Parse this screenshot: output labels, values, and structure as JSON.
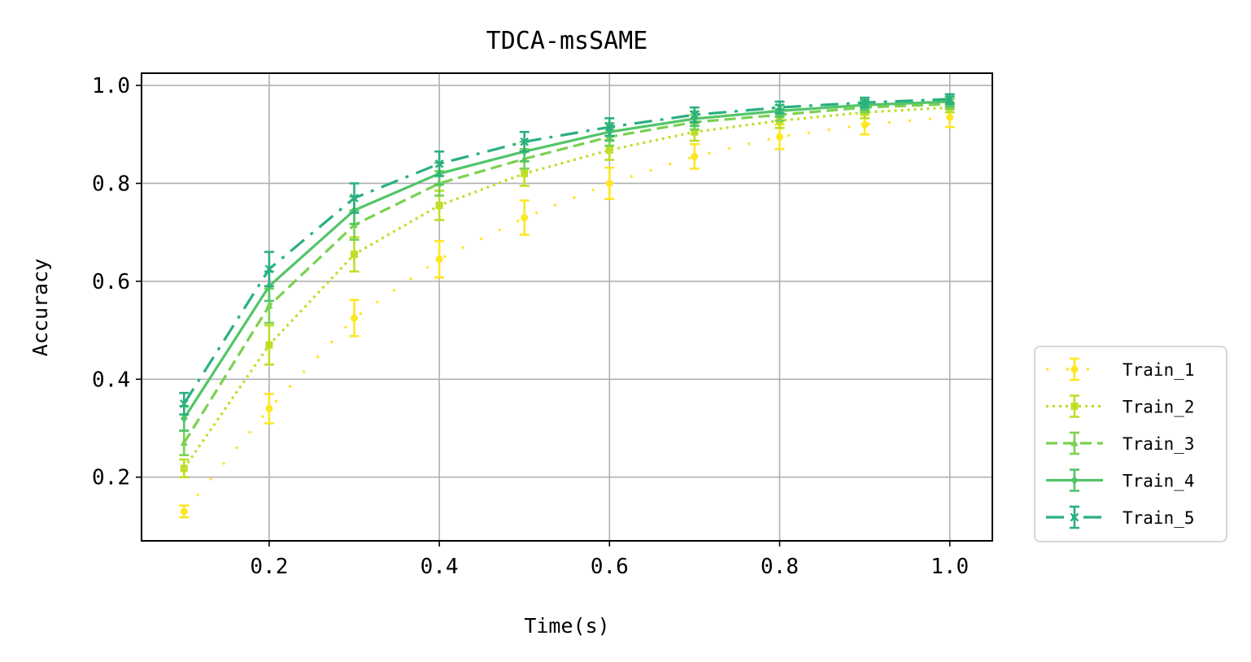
{
  "chart_data": {
    "type": "line",
    "title": "TDCA-msSAME",
    "xlabel": "Time(s)",
    "ylabel": "Accuracy",
    "xlim": [
      0.05,
      1.05
    ],
    "ylim": [
      0.07,
      1.025
    ],
    "xticks": [
      0.2,
      0.4,
      0.6,
      0.8,
      1.0
    ],
    "xtick_labels": [
      "0.2",
      "0.4",
      "0.6",
      "0.8",
      "1.0"
    ],
    "yticks": [
      0.2,
      0.4,
      0.6,
      0.8,
      1.0
    ],
    "ytick_labels": [
      "0.2",
      "0.4",
      "0.6",
      "0.8",
      "1.0"
    ],
    "grid": true,
    "legend_position": "outside-lower-right",
    "x": [
      0.1,
      0.2,
      0.3,
      0.4,
      0.5,
      0.6,
      0.7,
      0.8,
      0.9,
      1.0
    ],
    "series": [
      {
        "name": "Train_1",
        "color": "#fde725",
        "line_style": "loose-dotted",
        "marker": "circle",
        "values": [
          0.13,
          0.34,
          0.525,
          0.645,
          0.73,
          0.8,
          0.855,
          0.895,
          0.92,
          0.935
        ],
        "errors": [
          0.012,
          0.03,
          0.037,
          0.037,
          0.035,
          0.032,
          0.025,
          0.025,
          0.02,
          0.02
        ]
      },
      {
        "name": "Train_2",
        "color": "#bddf26",
        "line_style": "dotted",
        "marker": "square",
        "values": [
          0.218,
          0.47,
          0.655,
          0.755,
          0.82,
          0.868,
          0.905,
          0.928,
          0.945,
          0.955
        ],
        "errors": [
          0.018,
          0.04,
          0.035,
          0.03,
          0.025,
          0.02,
          0.018,
          0.015,
          0.012,
          0.01
        ]
      },
      {
        "name": "Train_3",
        "color": "#7ad151",
        "line_style": "dashed",
        "marker": "triangle",
        "values": [
          0.27,
          0.55,
          0.715,
          0.8,
          0.85,
          0.895,
          0.925,
          0.94,
          0.955,
          0.962
        ],
        "errors": [
          0.025,
          0.035,
          0.03,
          0.025,
          0.02,
          0.018,
          0.015,
          0.012,
          0.01,
          0.01
        ]
      },
      {
        "name": "Train_4",
        "color": "#52c569",
        "line_style": "solid",
        "marker": "diamond",
        "values": [
          0.32,
          0.59,
          0.745,
          0.82,
          0.865,
          0.905,
          0.932,
          0.948,
          0.96,
          0.967
        ],
        "errors": [
          0.025,
          0.03,
          0.028,
          0.022,
          0.02,
          0.018,
          0.015,
          0.012,
          0.01,
          0.01
        ]
      },
      {
        "name": "Train_5",
        "color": "#2ab07f",
        "line_style": "dash-dot",
        "marker": "x",
        "values": [
          0.35,
          0.625,
          0.77,
          0.84,
          0.885,
          0.915,
          0.94,
          0.955,
          0.965,
          0.972
        ],
        "errors": [
          0.022,
          0.035,
          0.03,
          0.025,
          0.02,
          0.018,
          0.015,
          0.012,
          0.01,
          0.01
        ]
      }
    ]
  }
}
